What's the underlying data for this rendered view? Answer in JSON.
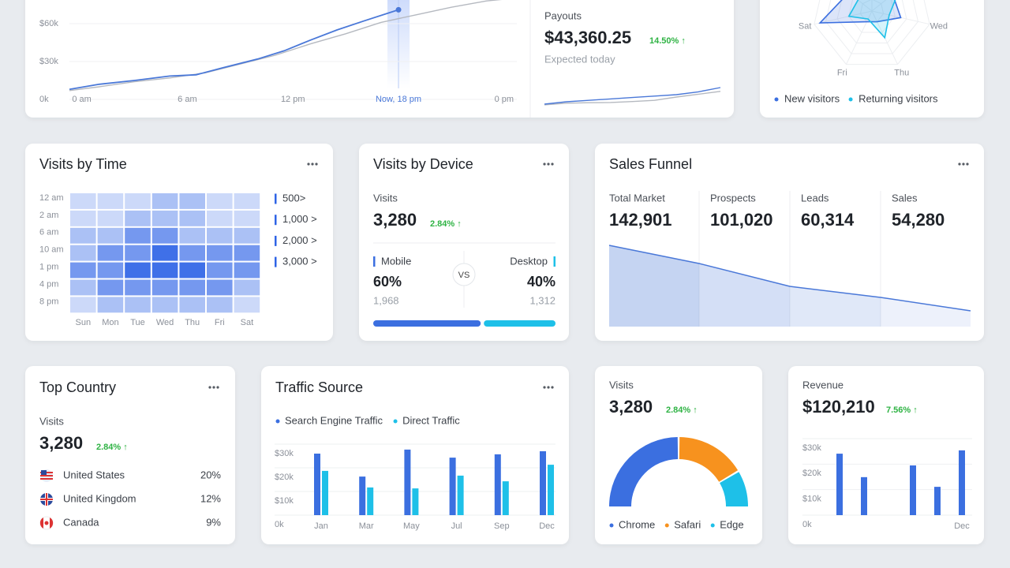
{
  "overview": {
    "chart": {
      "type": "line",
      "xlim": [
        -0.7,
        24.5
      ],
      "ylim": [
        0,
        80000
      ],
      "xticks": [
        {
          "value": 0,
          "label": "0 am"
        },
        {
          "value": 6,
          "label": "6 am"
        },
        {
          "value": 12,
          "label": "12 pm"
        },
        {
          "value": 18,
          "label": "Now, 18 pm"
        },
        {
          "value": 24,
          "label": "0 pm"
        }
      ],
      "yticks": [
        {
          "value": 0,
          "label": "0k"
        },
        {
          "value": 30000,
          "label": "$30k"
        },
        {
          "value": 60000,
          "label": "$60k"
        }
      ],
      "series": [
        {
          "color": "#4a78d8",
          "x": [
            -0.7,
            1,
            3,
            5,
            6.5,
            8,
            10,
            11.5,
            13,
            14.5,
            16,
            18
          ],
          "values": [
            8000,
            12000,
            15000,
            18500,
            19500,
            25000,
            32000,
            38500,
            47000,
            55000,
            62000,
            71000
          ]
        },
        {
          "color": "#b5b9c0",
          "x": [
            -0.7,
            1,
            3,
            5,
            7,
            9,
            11,
            13,
            15,
            17,
            19,
            21,
            23,
            24.5
          ],
          "values": [
            7000,
            10000,
            14000,
            17000,
            21000,
            28000,
            35000,
            44000,
            52000,
            61000,
            67000,
            73000,
            78000,
            80000
          ]
        }
      ]
    },
    "payouts": {
      "label": "Payouts",
      "value": "$43,360.25",
      "change": "14.50% ↑",
      "note": "Expected today",
      "sparkline": {
        "type": "line",
        "ylim": [
          0,
          10
        ],
        "series": [
          {
            "color": "#4a78d8",
            "values": [
              1,
              2,
              2.6,
              3.2,
              3.8,
              4.4,
              5,
              6.2,
              8
            ]
          },
          {
            "color": "#b5b9c0",
            "values": [
              0.7,
              1.4,
              1.6,
              1.7,
              2.1,
              2.6,
              4,
              5.2,
              6.4
            ]
          }
        ]
      }
    }
  },
  "radar": {
    "type": "radar",
    "categories": [
      null,
      null,
      "Wed",
      "Thu",
      "Fri",
      "Sat",
      null
    ],
    "ylim": [
      0,
      1
    ],
    "series": [
      {
        "name": "New visitors",
        "color": "#3b6fe0",
        "values": [
          0.9,
          0.45,
          0.5,
          0.2,
          0.2,
          0.9,
          0.5
        ]
      },
      {
        "name": "Returning visitors",
        "color": "#1ec0e8",
        "values": [
          0.7,
          0.6,
          0.3,
          0.5,
          0.15,
          0.4,
          0.3
        ]
      }
    ]
  },
  "visits_by_time": {
    "title": "Visits by Time",
    "chart": {
      "type": "heatmap",
      "color": "#2f64e6",
      "zlim": [
        0,
        3500
      ],
      "rows": [
        "12 am",
        "2 am",
        "6 am",
        "10 am",
        "1 pm",
        "4 pm",
        "8 pm"
      ],
      "columns": [
        "Sun",
        "Mon",
        "Tue",
        "Wed",
        "Thu",
        "Fri",
        "Sat"
      ],
      "values": [
        [
          600,
          600,
          600,
          1200,
          1200,
          600,
          600
        ],
        [
          600,
          600,
          1200,
          1200,
          1200,
          600,
          600
        ],
        [
          1200,
          1200,
          2200,
          2200,
          1200,
          1200,
          1200
        ],
        [
          1200,
          2200,
          2200,
          3200,
          2200,
          2200,
          2200
        ],
        [
          2200,
          2200,
          3200,
          3200,
          3200,
          2200,
          2200
        ],
        [
          1200,
          2200,
          2200,
          2200,
          2200,
          2200,
          1200
        ],
        [
          600,
          1200,
          1200,
          1200,
          1200,
          1200,
          600
        ]
      ],
      "legend": [
        "500>",
        "1,000 >",
        "2,000 >",
        "3,000 >"
      ]
    }
  },
  "visits_by_device": {
    "title": "Visits by Device",
    "label": "Visits",
    "value": "3,280",
    "change": "2.84% ↑",
    "vs": "VS",
    "mobile": {
      "label": "Mobile",
      "share": 60,
      "share_label": "60%",
      "count": "1,968",
      "color": "#3b6fe0"
    },
    "desktop": {
      "label": "Desktop",
      "share": 40,
      "share_label": "40%",
      "count": "1,312",
      "color": "#1ec0e8"
    }
  },
  "sales_funnel": {
    "title": "Sales Funnel",
    "stages": [
      {
        "label": "Total Market",
        "value": "142,901"
      },
      {
        "label": "Prospects",
        "value": "101,020"
      },
      {
        "label": "Leads",
        "value": "60,314"
      },
      {
        "label": "Sales",
        "value": "54,280"
      }
    ],
    "curve": {
      "type": "area",
      "color": "#4a78d8",
      "ylim": [
        0,
        103
      ],
      "values": [
        103,
        80,
        51,
        37,
        20
      ]
    }
  },
  "top_country": {
    "title": "Top Country",
    "label": "Visits",
    "value": "3,280",
    "change": "2.84% ↑",
    "countries": [
      {
        "name": "United States",
        "share": "20%"
      },
      {
        "name": "United Kingdom",
        "share": "12%"
      },
      {
        "name": "Canada",
        "share": "9%"
      }
    ]
  },
  "traffic_source": {
    "title": "Traffic Source",
    "chart": {
      "type": "bar",
      "categories": [
        "Jan",
        "Mar",
        "May",
        "Jul",
        "Sep",
        "Dec"
      ],
      "ylim": [
        0,
        30000
      ],
      "yticks": [
        {
          "value": 0,
          "label": "0k"
        },
        {
          "value": 10000,
          "label": "$10k"
        },
        {
          "value": 20000,
          "label": "$20k"
        },
        {
          "value": 30000,
          "label": "$30k"
        }
      ],
      "series": [
        {
          "name": "Search Engine Traffic",
          "color": "#3b6fe0",
          "values": [
            26000,
            16300,
            27700,
            24300,
            25700,
            27000
          ]
        },
        {
          "name": "Direct Traffic",
          "color": "#1ec0e8",
          "values": [
            18700,
            11700,
            11300,
            16700,
            14300,
            21300
          ]
        }
      ]
    }
  },
  "browsers": {
    "label": "Visits",
    "value": "3,280",
    "change": "2.84% ↑",
    "chart": {
      "type": "gauge",
      "categories": [
        "Chrome",
        "Safari",
        "Edge"
      ],
      "values": [
        50,
        33,
        17
      ],
      "colors": [
        "#3b6fe0",
        "#f7921e",
        "#1ec0e8"
      ]
    }
  },
  "revenue": {
    "label": "Revenue",
    "value": "$120,210",
    "change": "7.56% ↑",
    "chart": {
      "type": "bar",
      "color": "#3b6fe0",
      "categories": [
        null,
        null,
        null,
        null,
        null,
        "Dec"
      ],
      "ylim": [
        0,
        30000
      ],
      "yticks": [
        {
          "value": 0,
          "label": "0k"
        },
        {
          "value": 10000,
          "label": "$10k"
        },
        {
          "value": 20000,
          "label": "$20k"
        },
        {
          "value": 30000,
          "label": "$30k"
        }
      ],
      "values": [
        24100,
        14900,
        null,
        19500,
        11100,
        25400
      ]
    }
  }
}
